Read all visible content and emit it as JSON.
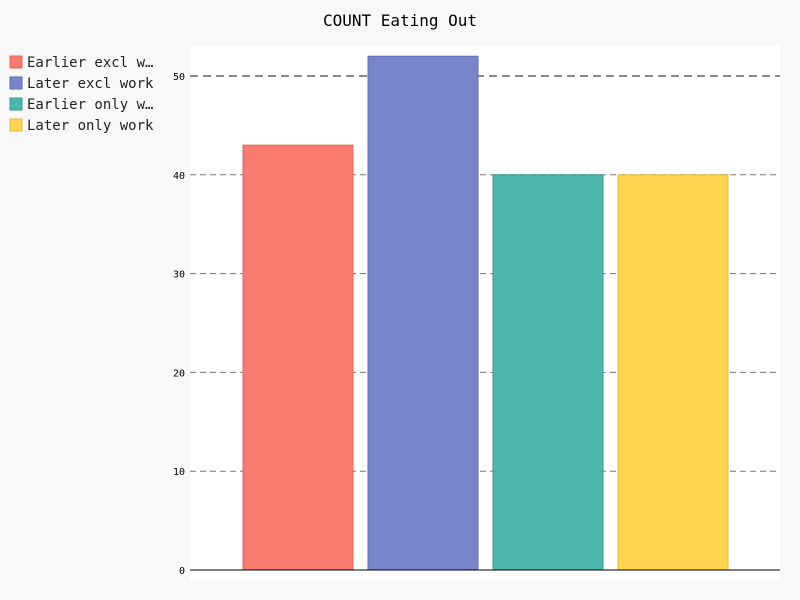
{
  "chart_data": {
    "type": "bar",
    "title": "COUNT Eating Out",
    "xlabel": "",
    "ylabel": "",
    "ylim": [
      0,
      53
    ],
    "yticks": [
      0,
      10,
      20,
      30,
      40,
      50
    ],
    "grid": true,
    "legend_position": "top-left",
    "series": [
      {
        "name": "Earlier excl w…",
        "value": 43,
        "color": "#F77B6F",
        "stroke": "#D9695E"
      },
      {
        "name": "Later excl work",
        "value": 52,
        "color": "#7885CB",
        "stroke": "#5C6AB0"
      },
      {
        "name": "Earlier only w…",
        "value": 40,
        "color": "#4DB6AC",
        "stroke": "#3A9A90"
      },
      {
        "name": "Later only work",
        "value": 40,
        "color": "#FFD54F",
        "stroke": "#E0B840"
      }
    ]
  }
}
